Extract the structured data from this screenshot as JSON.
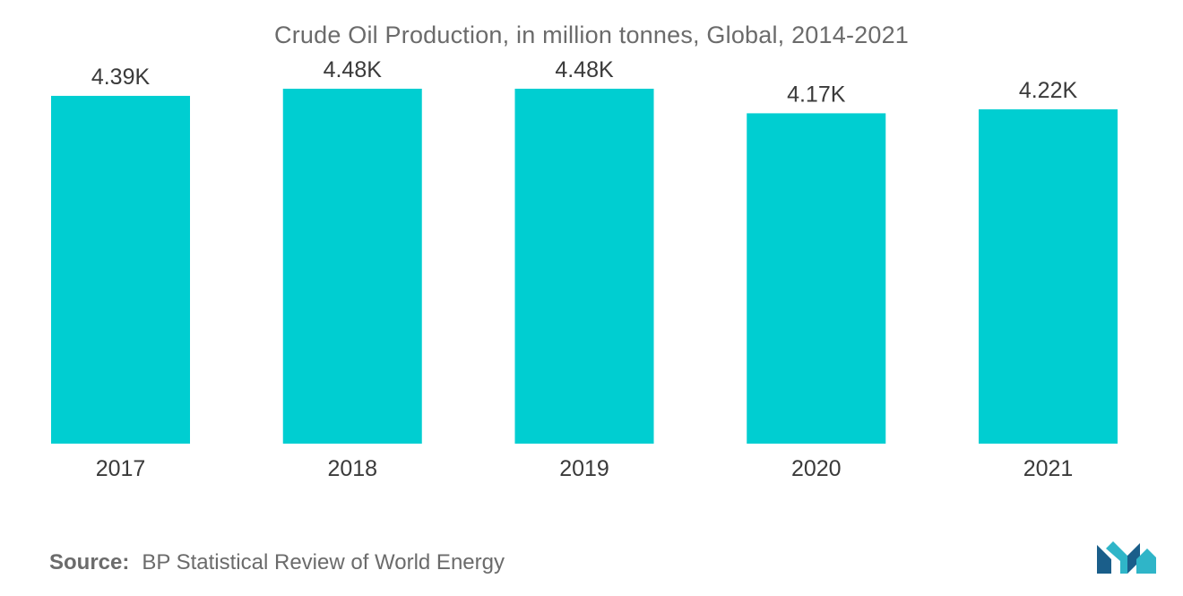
{
  "chart_data": {
    "type": "bar",
    "title": "Crude Oil Production, in million tonnes, Global, 2014-2021",
    "categories": [
      "2017",
      "2018",
      "2019",
      "2020",
      "2021"
    ],
    "values": [
      4390,
      4480,
      4480,
      4170,
      4220
    ],
    "value_labels": [
      "4.39K",
      "4.48K",
      "4.48K",
      "4.17K",
      "4.22K"
    ],
    "xlabel": "",
    "ylabel": "",
    "ylim": [
      0,
      5600
    ],
    "grid": false,
    "legend": "none",
    "bar_color": "#00ced1"
  },
  "source": {
    "label": "Source:",
    "text": "BP Statistical Review of World Energy"
  },
  "logo": {
    "icon": "mordor-intelligence-logo",
    "colors": [
      "#1a5e8a",
      "#2fb5c8"
    ]
  }
}
